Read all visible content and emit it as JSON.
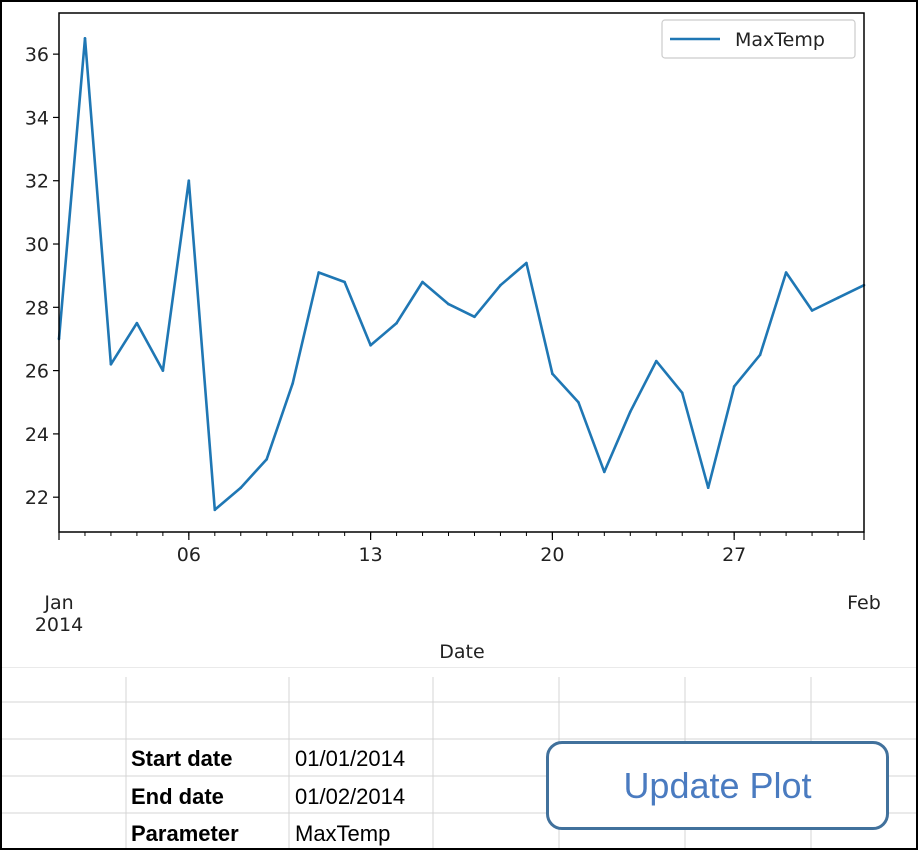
{
  "chart_data": {
    "type": "line",
    "xlabel": "Date",
    "x_start": "2014-01-01",
    "x_end": "2014-02-01",
    "xticks": [
      {
        "date": "2014-01-01",
        "label": "Jan\n2014"
      },
      {
        "date": "2014-01-06",
        "label": "06"
      },
      {
        "date": "2014-01-13",
        "label": "13"
      },
      {
        "date": "2014-01-20",
        "label": "20"
      },
      {
        "date": "2014-01-27",
        "label": "27"
      },
      {
        "date": "2014-02-01",
        "label": "Feb"
      }
    ],
    "ylim": [
      20.9,
      37.3
    ],
    "yticks": [
      22,
      24,
      26,
      28,
      30,
      32,
      34,
      36
    ],
    "grid": false,
    "legend_position": "top-right",
    "series": [
      {
        "name": "MaxTemp",
        "color": "#1f77b4",
        "x": [
          "2014-01-01",
          "2014-01-02",
          "2014-01-03",
          "2014-01-04",
          "2014-01-05",
          "2014-01-06",
          "2014-01-07",
          "2014-01-08",
          "2014-01-09",
          "2014-01-10",
          "2014-01-11",
          "2014-01-12",
          "2014-01-13",
          "2014-01-14",
          "2014-01-15",
          "2014-01-16",
          "2014-01-17",
          "2014-01-18",
          "2014-01-19",
          "2014-01-20",
          "2014-01-21",
          "2014-01-22",
          "2014-01-23",
          "2014-01-24",
          "2014-01-25",
          "2014-01-26",
          "2014-01-27",
          "2014-01-28",
          "2014-01-29",
          "2014-01-30",
          "2014-01-31",
          "2014-02-01"
        ],
        "values": [
          27.0,
          36.5,
          26.2,
          27.5,
          26.0,
          32.0,
          21.6,
          22.3,
          23.2,
          25.6,
          29.1,
          28.8,
          26.8,
          27.5,
          28.8,
          28.1,
          27.7,
          28.7,
          29.4,
          25.9,
          25.0,
          22.8,
          24.7,
          26.3,
          25.3,
          22.3,
          25.5,
          26.5,
          29.1,
          27.9,
          28.3,
          28.7
        ]
      }
    ]
  },
  "form": {
    "start_date_label": "Start date",
    "start_date_value": "01/01/2014",
    "end_date_label": "End date",
    "end_date_value": "01/02/2014",
    "parameter_label": "Parameter",
    "parameter_value": "MaxTemp"
  },
  "update_button_label": "Update Plot"
}
